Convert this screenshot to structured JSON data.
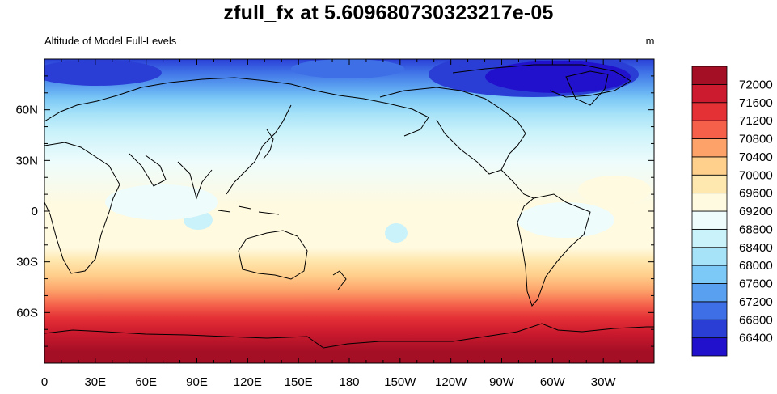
{
  "title": "zfull_fx at 5.609680730323217e-05",
  "subtitle_left": "Altitude of Model Full-Levels",
  "units": "m",
  "lat_ticks": [
    {
      "label": "60N",
      "lat": 60
    },
    {
      "label": "30N",
      "lat": 30
    },
    {
      "label": "0",
      "lat": 0
    },
    {
      "label": "30S",
      "lat": -30
    },
    {
      "label": "60S",
      "lat": -60
    }
  ],
  "lon_ticks": [
    {
      "label": "0",
      "lon": 0
    },
    {
      "label": "30E",
      "lon": 30
    },
    {
      "label": "60E",
      "lon": 60
    },
    {
      "label": "90E",
      "lon": 90
    },
    {
      "label": "120E",
      "lon": 120
    },
    {
      "label": "150E",
      "lon": 150
    },
    {
      "label": "180",
      "lon": 180
    },
    {
      "label": "150W",
      "lon": 210
    },
    {
      "label": "120W",
      "lon": 240
    },
    {
      "label": "90W",
      "lon": 270
    },
    {
      "label": "60W",
      "lon": 300
    },
    {
      "label": "30W",
      "lon": 330
    }
  ],
  "colorbar": {
    "colors": [
      "#2211cc",
      "#2a3ed6",
      "#3e6fe6",
      "#5aa0f0",
      "#7cc8f6",
      "#a6e2f8",
      "#caf2fa",
      "#eefcfc",
      "#fffae0",
      "#ffe8b0",
      "#ffcf8c",
      "#fda36a",
      "#f4604a",
      "#e43136",
      "#cc1a2e",
      "#a50f26"
    ],
    "labels": [
      "66400",
      "66800",
      "67200",
      "67600",
      "68000",
      "68400",
      "68800",
      "69200",
      "69600",
      "70000",
      "70400",
      "70800",
      "71200",
      "71600",
      "72000"
    ]
  }
}
